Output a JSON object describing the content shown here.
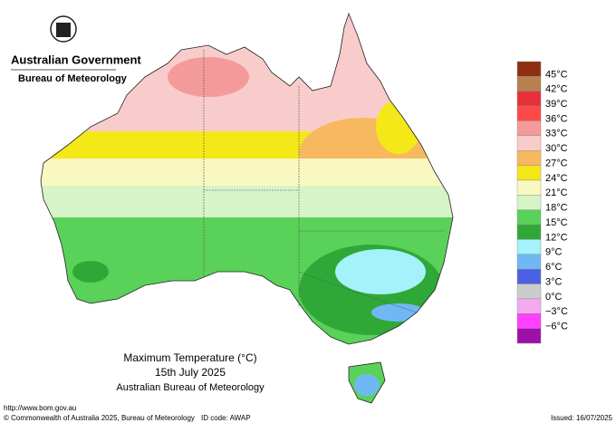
{
  "header": {
    "agency": "Australian Government",
    "bureau": "Bureau of Meteorology"
  },
  "legend": {
    "labels": [
      "45°C",
      "42°C",
      "39°C",
      "36°C",
      "33°C",
      "30°C",
      "27°C",
      "24°C",
      "21°C",
      "18°C",
      "15°C",
      "12°C",
      "9°C",
      "6°C",
      "3°C",
      "0°C",
      "−3°C",
      "−6°C"
    ],
    "colors": [
      "#8e2f10",
      "#b8804c",
      "#e8303a",
      "#ff4848",
      "#f59a9a",
      "#f9cccc",
      "#f8b860",
      "#f4e818",
      "#f8f8c0",
      "#d6f4c8",
      "#5ad25a",
      "#2fa838",
      "#a4f2fa",
      "#70b8f4",
      "#4c60e4",
      "#cccccc",
      "#f4aaf0",
      "#ff40ff",
      "#a010a8"
    ]
  },
  "title": {
    "line1": "Maximum Temperature (°C)",
    "line2": "15th July 2025",
    "line3": "Australian Bureau of Meteorology"
  },
  "footer": {
    "url": "http://www.bom.gov.au",
    "copyright": "© Commonwealth of Australia 2025, Bureau of Meteorology",
    "id_code": "ID code: AWAP",
    "issued": "Issued: 16/07/2025"
  }
}
